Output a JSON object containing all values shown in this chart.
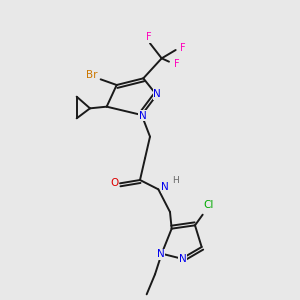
{
  "background_color": "#e8e8e8",
  "bond_color": "#1a1a1a",
  "bond_width": 1.4,
  "figsize": [
    3.0,
    3.0
  ],
  "dpi": 100,
  "colors": {
    "Br": "#cc7700",
    "F": "#ff00bb",
    "N": "#0000ee",
    "O": "#dd0000",
    "Cl": "#00aa00",
    "H": "#666666",
    "C": "#1a1a1a"
  }
}
